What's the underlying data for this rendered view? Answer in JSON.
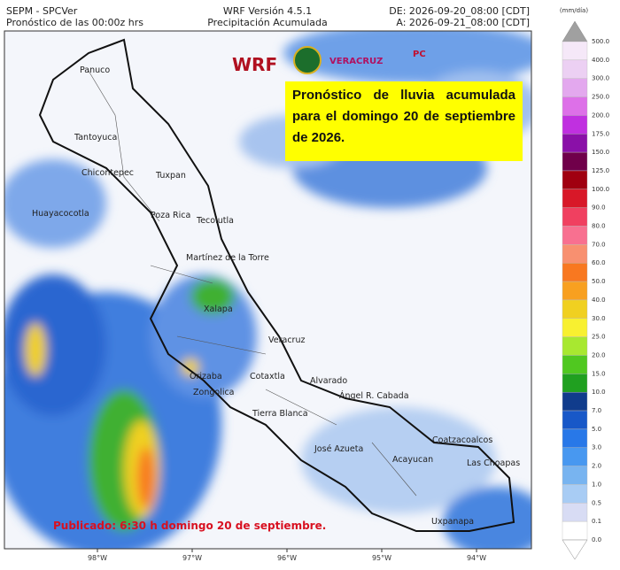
{
  "header": {
    "org": "SEPM - SPCVer",
    "run": "Pronóstico de las 00:00z hrs",
    "model": "WRF Versión 4.5.1",
    "product": "Precipitación Acumulada",
    "from": "DE: 2026-09-20_08:00 [CDT]",
    "to": "A: 2026-09-21_08:00 [CDT]"
  },
  "logos": {
    "wrf": "WRF",
    "state": "VERACRUZ",
    "pc": "PC"
  },
  "callout": "Pronóstico de lluvia acumulada para el domingo 20 de septiembre de 2026.",
  "published": "Publicado: 6:30 h domingo 20 de septiembre.",
  "longitudes": [
    "98°W",
    "97°W",
    "96°W",
    "95°W",
    "94°W"
  ],
  "cities": [
    "Panuco",
    "Tantoyuca",
    "Chicontepec",
    "Tuxpan",
    "Huayacocotla",
    "Poza Rica",
    "Tecolutla",
    "Martínez de la Torre",
    "Xalapa",
    "Veracruz",
    "Orizaba",
    "Zongolica",
    "Cotaxtla",
    "Alvarado",
    "Tierra Blanca",
    "Ángel R. Cabada",
    "José Azueta",
    "Acayucan",
    "Coatzacoalcos",
    "Las Choapas",
    "Uxpanapa"
  ],
  "colorbar": {
    "unit": "(mm/día)",
    "labels": [
      "500.0",
      "400.0",
      "300.0",
      "250.0",
      "200.0",
      "175.0",
      "150.0",
      "125.0",
      "100.0",
      "90.0",
      "80.0",
      "70.0",
      "60.0",
      "50.0",
      "40.0",
      "30.0",
      "25.0",
      "20.0",
      "15.0",
      "10.0",
      "7.0",
      "5.0",
      "3.0",
      "2.0",
      "1.0",
      "0.5",
      "0.1",
      "0.0"
    ],
    "colors": [
      "#f5e8f8",
      "#ecd0f3",
      "#e3a8ee",
      "#dd70e8",
      "#c030e0",
      "#8a10a8",
      "#70004a",
      "#a00010",
      "#d81828",
      "#f04060",
      "#f87090",
      "#f89070",
      "#f87820",
      "#f8a020",
      "#f0d020",
      "#f8f030",
      "#a8e830",
      "#50c820",
      "#20a020",
      "#103c8c",
      "#1858c8",
      "#2878e8",
      "#4898f0",
      "#78b4f0",
      "#a8ccf4",
      "#d8dcf4",
      "#ffffff"
    ]
  }
}
